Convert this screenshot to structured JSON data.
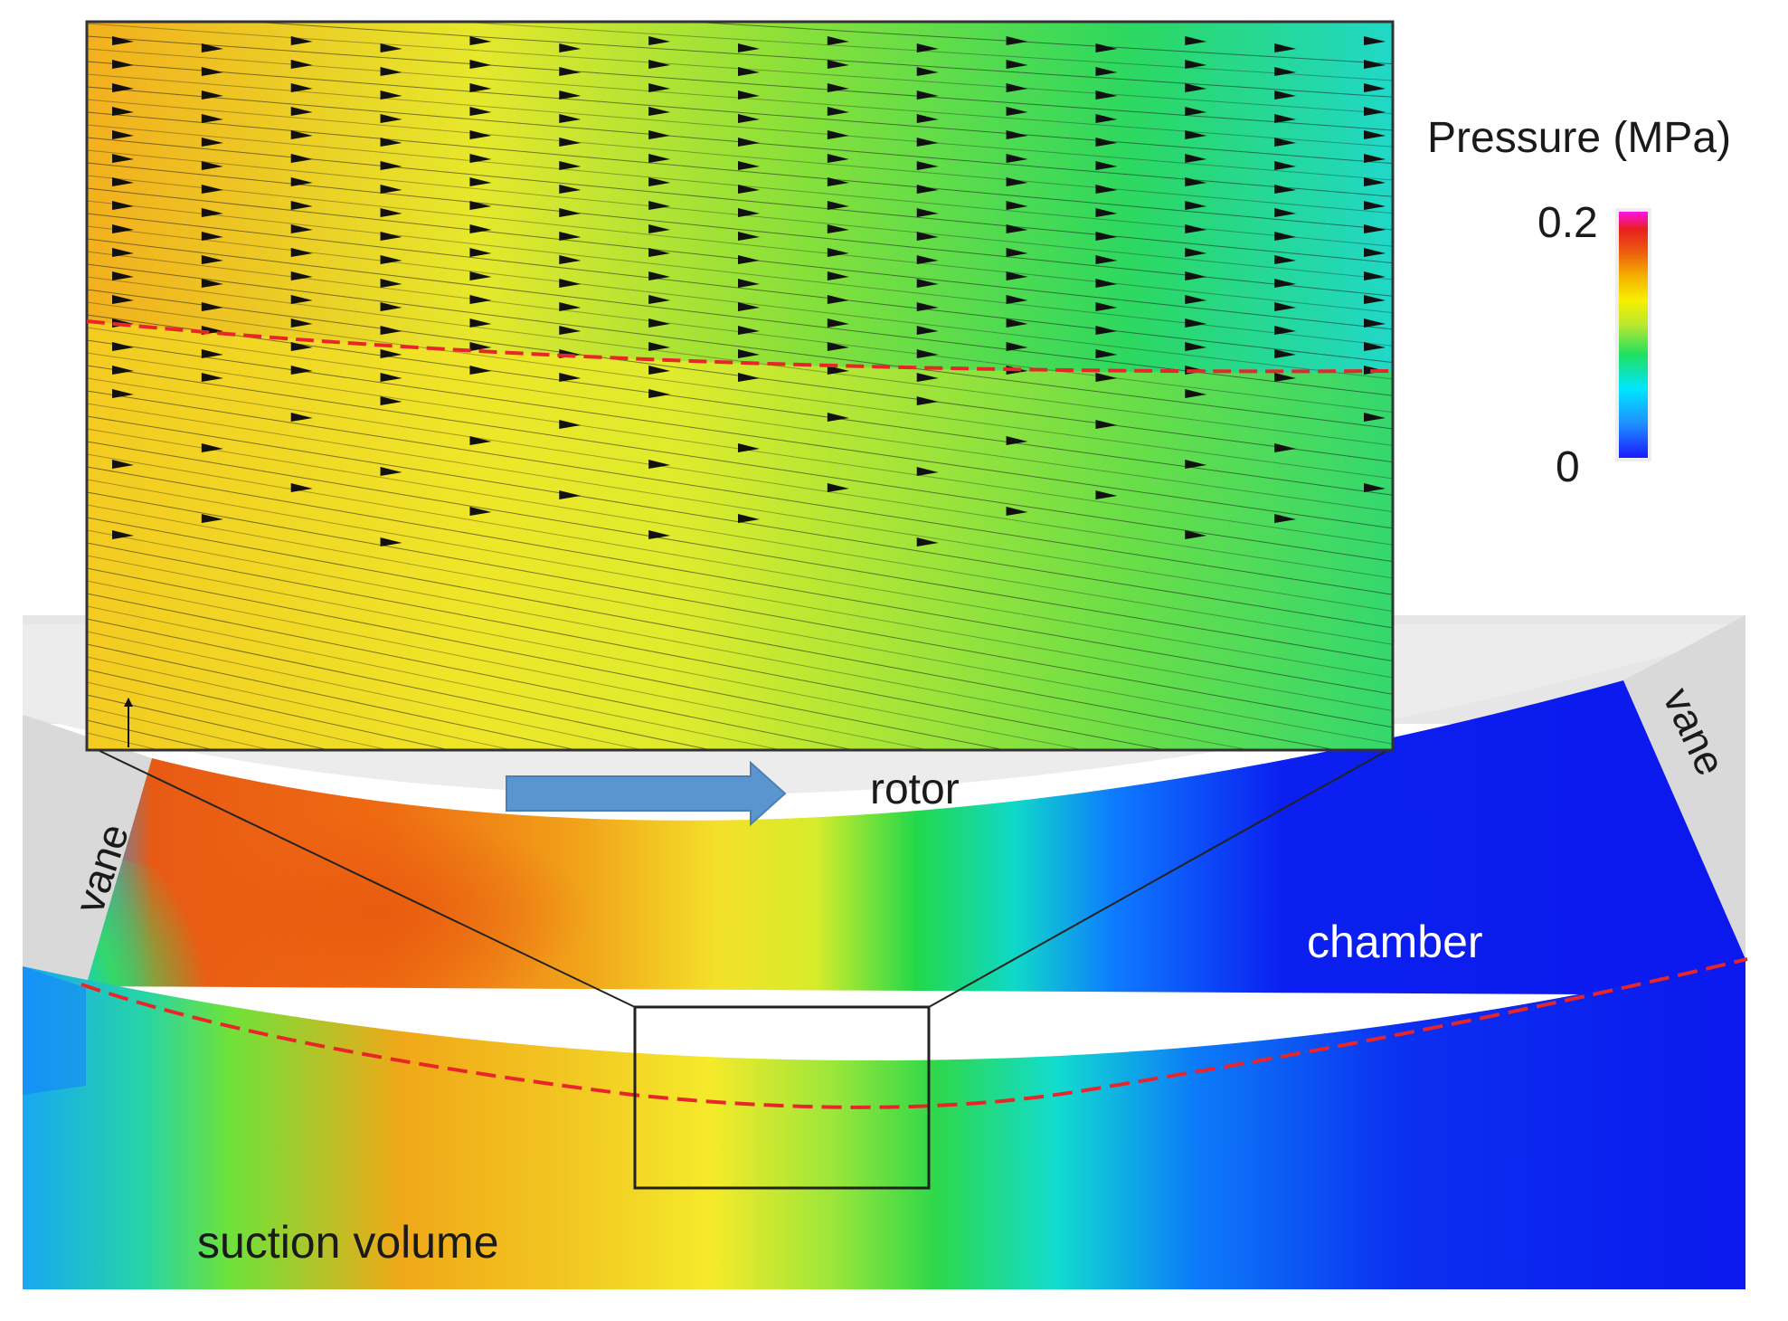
{
  "figure": {
    "labels": {
      "rotor": "rotor",
      "vane_left": "vane",
      "vane_right": "vane",
      "chamber": "chamber",
      "suction_volume": "suction volume"
    },
    "legend": {
      "title": "Pressure (MPa)",
      "max_label": "0.2",
      "min_label": "0",
      "range": [
        0,
        0.2
      ],
      "colors": [
        "#1a1aff",
        "#1e90ff",
        "#00e5ff",
        "#20e060",
        "#b8e830",
        "#f6f000",
        "#f5b000",
        "#ec5a10",
        "#e81e1e",
        "#ff10e8"
      ]
    },
    "field_colors": {
      "high": "#ec6a14",
      "mid": "#f2e22a",
      "low_mid": "#22d84a",
      "low": "#0b18f0",
      "background": "#e8e8e8"
    },
    "markers": {
      "boundary_line_color": "#e8262a",
      "rotation_arrow_color": "#5b95d0",
      "velocity_arrow_color": "#111111"
    }
  }
}
